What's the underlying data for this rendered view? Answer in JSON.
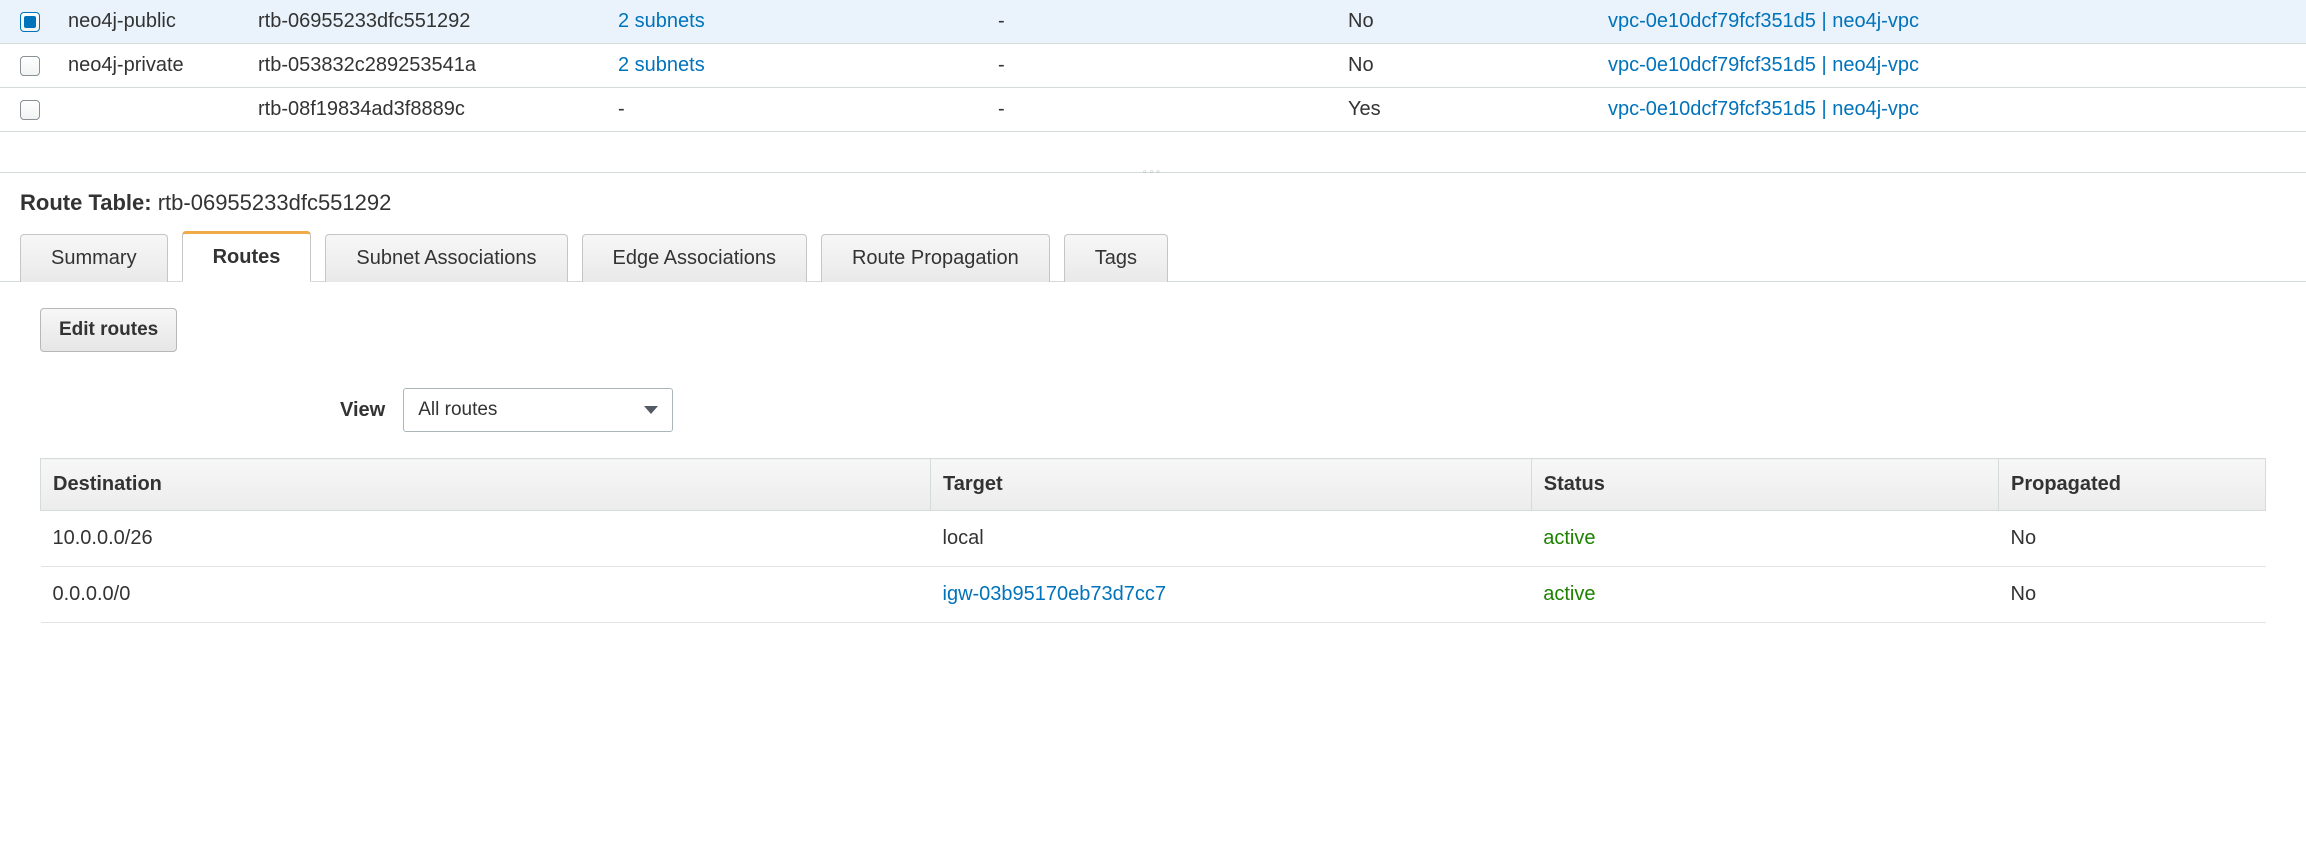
{
  "route_tables": [
    {
      "selected": true,
      "name": "neo4j-public",
      "id": "rtb-06955233dfc551292",
      "subnets": "2 subnets",
      "edge": "-",
      "main": "No",
      "vpc": "vpc-0e10dcf79fcf351d5 | neo4j-vpc"
    },
    {
      "selected": false,
      "name": "neo4j-private",
      "id": "rtb-053832c289253541a",
      "subnets": "2 subnets",
      "edge": "-",
      "main": "No",
      "vpc": "vpc-0e10dcf79fcf351d5 | neo4j-vpc"
    },
    {
      "selected": false,
      "name": "",
      "id": "rtb-08f19834ad3f8889c",
      "subnets": "-",
      "edge": "-",
      "main": "Yes",
      "vpc": "vpc-0e10dcf79fcf351d5 | neo4j-vpc"
    }
  ],
  "detail": {
    "label": "Route Table:",
    "selected_id": "rtb-06955233dfc551292"
  },
  "tabs": {
    "summary": "Summary",
    "routes": "Routes",
    "subnet_assoc": "Subnet Associations",
    "edge_assoc": "Edge Associations",
    "route_prop": "Route Propagation",
    "tags": "Tags"
  },
  "buttons": {
    "edit_routes": "Edit routes"
  },
  "view": {
    "label": "View",
    "selected": "All routes"
  },
  "routes_table": {
    "headers": {
      "destination": "Destination",
      "target": "Target",
      "status": "Status",
      "propagated": "Propagated"
    },
    "rows": [
      {
        "destination": "10.0.0.0/26",
        "target": "local",
        "target_link": false,
        "status": "active",
        "propagated": "No"
      },
      {
        "destination": "0.0.0.0/0",
        "target": "igw-03b95170eb73d7cc7",
        "target_link": true,
        "status": "active",
        "propagated": "No"
      }
    ]
  }
}
